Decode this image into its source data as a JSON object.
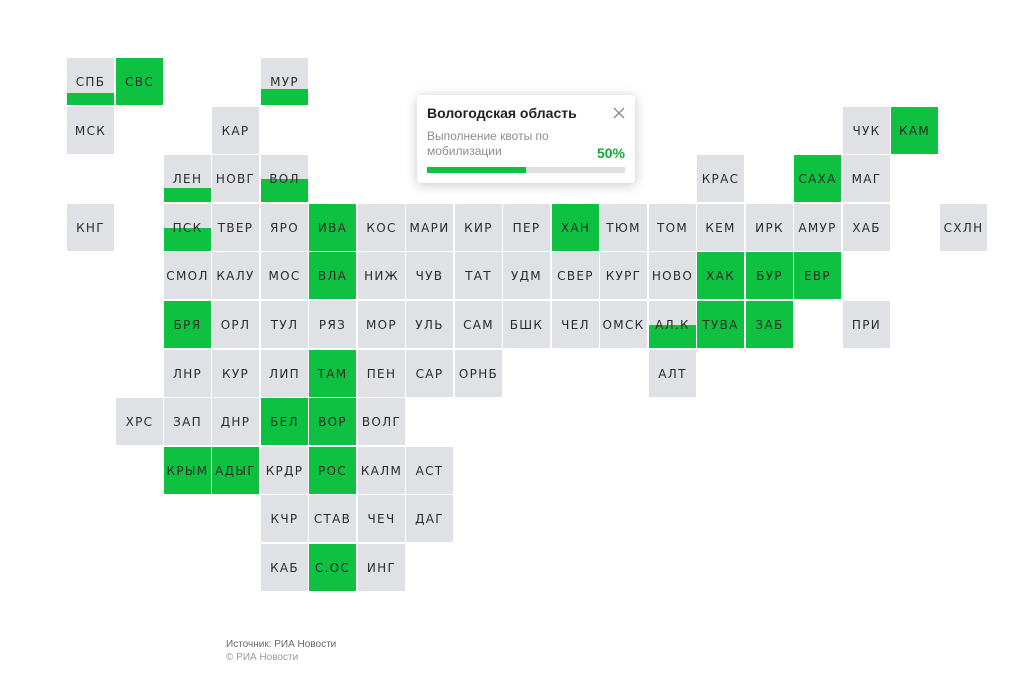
{
  "colors": {
    "accent": "#0ec140",
    "cell": "#dfe1e4",
    "value_text": "#14a83c"
  },
  "regions": [
    {
      "code": "СПБ",
      "fill": 0.25
    },
    {
      "code": "СВС",
      "fill": 1
    },
    {
      "code": "МУР",
      "fill": 0.35
    },
    {
      "code": "МСК",
      "fill": 0
    },
    {
      "code": "КАР",
      "fill": 0
    },
    {
      "code": "ЧУК",
      "fill": 0
    },
    {
      "code": "КАМ",
      "fill": 1
    },
    {
      "code": "ЛЕН",
      "fill": 0.3
    },
    {
      "code": "НОВГ",
      "fill": 0
    },
    {
      "code": "ВОЛ",
      "fill": 0.5
    },
    {
      "code": "КРАС",
      "fill": 0
    },
    {
      "code": "САХА",
      "fill": 1
    },
    {
      "code": "МАГ",
      "fill": 0
    },
    {
      "code": "КНГ",
      "fill": 0
    },
    {
      "code": "ПСК",
      "fill": 0.5
    },
    {
      "code": "ТВЕР",
      "fill": 0
    },
    {
      "code": "ЯРО",
      "fill": 0
    },
    {
      "code": "ИВА",
      "fill": 1
    },
    {
      "code": "КОС",
      "fill": 0
    },
    {
      "code": "МАРИ",
      "fill": 0
    },
    {
      "code": "КИР",
      "fill": 0
    },
    {
      "code": "ПЕР",
      "fill": 0
    },
    {
      "code": "ХАН",
      "fill": 1
    },
    {
      "code": "ТЮМ",
      "fill": 0
    },
    {
      "code": "ТОМ",
      "fill": 0
    },
    {
      "code": "КЕМ",
      "fill": 0
    },
    {
      "code": "ИРК",
      "fill": 0
    },
    {
      "code": "АМУР",
      "fill": 0
    },
    {
      "code": "ХАБ",
      "fill": 0
    },
    {
      "code": "СХЛН",
      "fill": 0
    },
    {
      "code": "СМОЛ",
      "fill": 0
    },
    {
      "code": "КАЛУ",
      "fill": 0
    },
    {
      "code": "МОС",
      "fill": 0
    },
    {
      "code": "ВЛА",
      "fill": 1
    },
    {
      "code": "НИЖ",
      "fill": 0
    },
    {
      "code": "ЧУВ",
      "fill": 0
    },
    {
      "code": "ТАТ",
      "fill": 0
    },
    {
      "code": "УДМ",
      "fill": 0
    },
    {
      "code": "СВЕР",
      "fill": 0
    },
    {
      "code": "КУРГ",
      "fill": 0
    },
    {
      "code": "НОВО",
      "fill": 0
    },
    {
      "code": "ХАК",
      "fill": 1
    },
    {
      "code": "БУР",
      "fill": 1
    },
    {
      "code": "ЕВР",
      "fill": 1
    },
    {
      "code": "БРЯ",
      "fill": 1
    },
    {
      "code": "ОРЛ",
      "fill": 0
    },
    {
      "code": "ТУЛ",
      "fill": 0
    },
    {
      "code": "РЯЗ",
      "fill": 0
    },
    {
      "code": "МОР",
      "fill": 0
    },
    {
      "code": "УЛЬ",
      "fill": 0
    },
    {
      "code": "САМ",
      "fill": 0
    },
    {
      "code": "БШК",
      "fill": 0
    },
    {
      "code": "ЧЕЛ",
      "fill": 0
    },
    {
      "code": "ОМСК",
      "fill": 0
    },
    {
      "code": "АЛ.К",
      "fill": 0.5
    },
    {
      "code": "ТУВА",
      "fill": 1
    },
    {
      "code": "ЗАБ",
      "fill": 1
    },
    {
      "code": "ПРИ",
      "fill": 0
    },
    {
      "code": "ЛНР",
      "fill": 0
    },
    {
      "code": "КУР",
      "fill": 0
    },
    {
      "code": "ЛИП",
      "fill": 0
    },
    {
      "code": "ТАМ",
      "fill": 1
    },
    {
      "code": "ПЕН",
      "fill": 0
    },
    {
      "code": "САР",
      "fill": 0
    },
    {
      "code": "ОРНБ",
      "fill": 0
    },
    {
      "code": "АЛТ",
      "fill": 0
    },
    {
      "code": "ХРС",
      "fill": 0
    },
    {
      "code": "ЗАП",
      "fill": 0
    },
    {
      "code": "ДНР",
      "fill": 0
    },
    {
      "code": "БЕЛ",
      "fill": 1
    },
    {
      "code": "ВОР",
      "fill": 1
    },
    {
      "code": "ВОЛГ",
      "fill": 0
    },
    {
      "code": "КРЫМ",
      "fill": 1
    },
    {
      "code": "АДЫГ",
      "fill": 1
    },
    {
      "code": "КРДР",
      "fill": 0
    },
    {
      "code": "РОС",
      "fill": 1
    },
    {
      "code": "КАЛМ",
      "fill": 0
    },
    {
      "code": "АСТ",
      "fill": 0
    },
    {
      "code": "КЧР",
      "fill": 0
    },
    {
      "code": "СТАВ",
      "fill": 0
    },
    {
      "code": "ЧЕЧ",
      "fill": 0
    },
    {
      "code": "ДАГ",
      "fill": 0
    },
    {
      "code": "КАБ",
      "fill": 0
    },
    {
      "code": "С.ОС",
      "fill": 1
    },
    {
      "code": "ИНГ",
      "fill": 0
    }
  ],
  "tooltip": {
    "title": "Вологодская область",
    "label": "Выполнение квоты по мобилизации",
    "value_text": "50%",
    "progress": 0.5
  },
  "footer": {
    "source": "Источник: РИА Новости",
    "copyright": "© РИА Новости"
  }
}
